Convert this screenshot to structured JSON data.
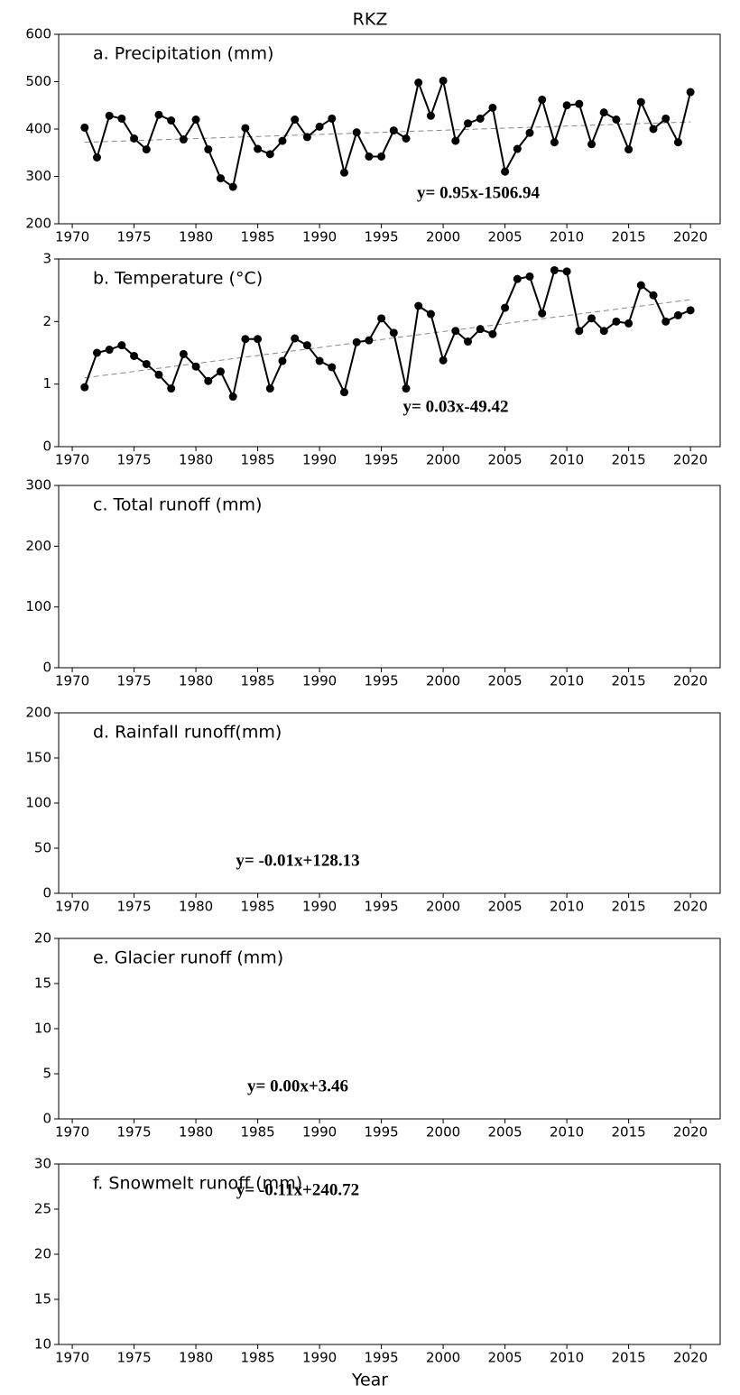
{
  "figure": {
    "title": "RKZ",
    "xlabel": "Year"
  },
  "chart_data": [
    {
      "type": "line",
      "title": "a. Precipitation (mm)",
      "equation": "y= 0.95x-1506.94",
      "color": "#000000",
      "x": [
        1971,
        1972,
        1973,
        1974,
        1975,
        1976,
        1977,
        1978,
        1979,
        1980,
        1981,
        1982,
        1983,
        1984,
        1985,
        1986,
        1987,
        1988,
        1989,
        1990,
        1991,
        1992,
        1993,
        1994,
        1995,
        1996,
        1997,
        1998,
        1999,
        2000,
        2001,
        2002,
        2003,
        2004,
        2005,
        2006,
        2007,
        2008,
        2009,
        2010,
        2011,
        2012,
        2013,
        2014,
        2015,
        2016,
        2017,
        2018,
        2019,
        2020
      ],
      "values": [
        403,
        340,
        428,
        422,
        380,
        357,
        430,
        418,
        378,
        420,
        357,
        296,
        278,
        402,
        358,
        347,
        375,
        420,
        383,
        405,
        422,
        308,
        393,
        342,
        342,
        397,
        380,
        498,
        428,
        502,
        375,
        412,
        422,
        445,
        310,
        358,
        392,
        462,
        372,
        450,
        453,
        368,
        435,
        420,
        357,
        457,
        400,
        422,
        372,
        478
      ],
      "trend": {
        "x": [
          1971,
          2020
        ],
        "values": [
          372,
          415
        ]
      },
      "xlim": [
        1968.9,
        2022.4
      ],
      "xticks": [
        1970,
        1975,
        1980,
        1985,
        1990,
        1995,
        2000,
        2005,
        2010,
        2015,
        2020
      ],
      "ylim": [
        200,
        600
      ],
      "yticks": [
        200,
        300,
        400,
        500,
        600
      ]
    },
    {
      "type": "line",
      "title": "b. Temperature (°C)",
      "equation": "y= 0.03x-49.42",
      "color": "#000000",
      "x": [
        1971,
        1972,
        1973,
        1974,
        1975,
        1976,
        1977,
        1978,
        1979,
        1980,
        1981,
        1982,
        1983,
        1984,
        1985,
        1986,
        1987,
        1988,
        1989,
        1990,
        1991,
        1992,
        1993,
        1994,
        1995,
        1996,
        1997,
        1998,
        1999,
        2000,
        2001,
        2002,
        2003,
        2004,
        2005,
        2006,
        2007,
        2008,
        2009,
        2010,
        2011,
        2012,
        2013,
        2014,
        2015,
        2016,
        2017,
        2018,
        2019,
        2020
      ],
      "values": [
        0.95,
        1.5,
        1.55,
        1.62,
        1.45,
        1.32,
        1.15,
        0.93,
        1.48,
        1.28,
        1.05,
        1.2,
        0.8,
        1.72,
        1.72,
        0.93,
        1.37,
        1.73,
        1.62,
        1.37,
        1.27,
        0.87,
        1.67,
        1.7,
        2.05,
        1.82,
        0.93,
        2.25,
        2.12,
        1.38,
        1.85,
        1.68,
        1.88,
        1.8,
        2.22,
        2.68,
        2.72,
        2.13,
        2.82,
        2.8,
        1.85,
        2.05,
        1.85,
        2.0,
        1.97,
        2.58,
        2.42,
        2.0,
        2.1,
        2.18
      ],
      "trend": {
        "x": [
          1971,
          2020
        ],
        "values": [
          1.1,
          2.35
        ]
      },
      "xlim": [
        1968.9,
        2022.4
      ],
      "xticks": [
        1970,
        1975,
        1980,
        1985,
        1990,
        1995,
        2000,
        2005,
        2010,
        2015,
        2020
      ],
      "ylim": [
        0,
        3
      ],
      "yticks": [
        0,
        1,
        2,
        3
      ]
    },
    {
      "type": "line",
      "title": "c. Total runoff (mm)",
      "xlim": [
        1968.9,
        2022.4
      ],
      "xticks": [
        1970,
        1975,
        1980,
        1985,
        1990,
        1995,
        2000,
        2005,
        2010,
        2015,
        2020
      ],
      "ylim": [
        0,
        300
      ],
      "yticks": [
        0,
        100,
        200,
        300
      ]
    },
    {
      "type": "line",
      "title": "d. Rainfall runoff(mm)",
      "equation": "y= -0.01x+128.13",
      "xlim": [
        1968.9,
        2022.4
      ],
      "xticks": [
        1970,
        1975,
        1980,
        1985,
        1990,
        1995,
        2000,
        2005,
        2010,
        2015,
        2020
      ],
      "ylim": [
        0,
        200
      ],
      "yticks": [
        0,
        50,
        100,
        150,
        200
      ]
    },
    {
      "type": "line",
      "title": "e. Glacier runoff (mm)",
      "equation": "y= 0.00x+3.46",
      "xlim": [
        1968.9,
        2022.4
      ],
      "xticks": [
        1970,
        1975,
        1980,
        1985,
        1990,
        1995,
        2000,
        2005,
        2010,
        2015,
        2020
      ],
      "ylim": [
        0,
        20
      ],
      "yticks": [
        0,
        5,
        10,
        15,
        20
      ]
    },
    {
      "type": "line",
      "title": "f. Snowmelt runoff (mm)",
      "equation": "y= -0.11x+240.72",
      "xlim": [
        1968.9,
        2022.4
      ],
      "xticks": [
        1970,
        1975,
        1980,
        1985,
        1990,
        1995,
        2000,
        2005,
        2010,
        2015,
        2020
      ],
      "ylim": [
        10,
        30
      ],
      "yticks": [
        10,
        15,
        20,
        25,
        30
      ]
    }
  ]
}
